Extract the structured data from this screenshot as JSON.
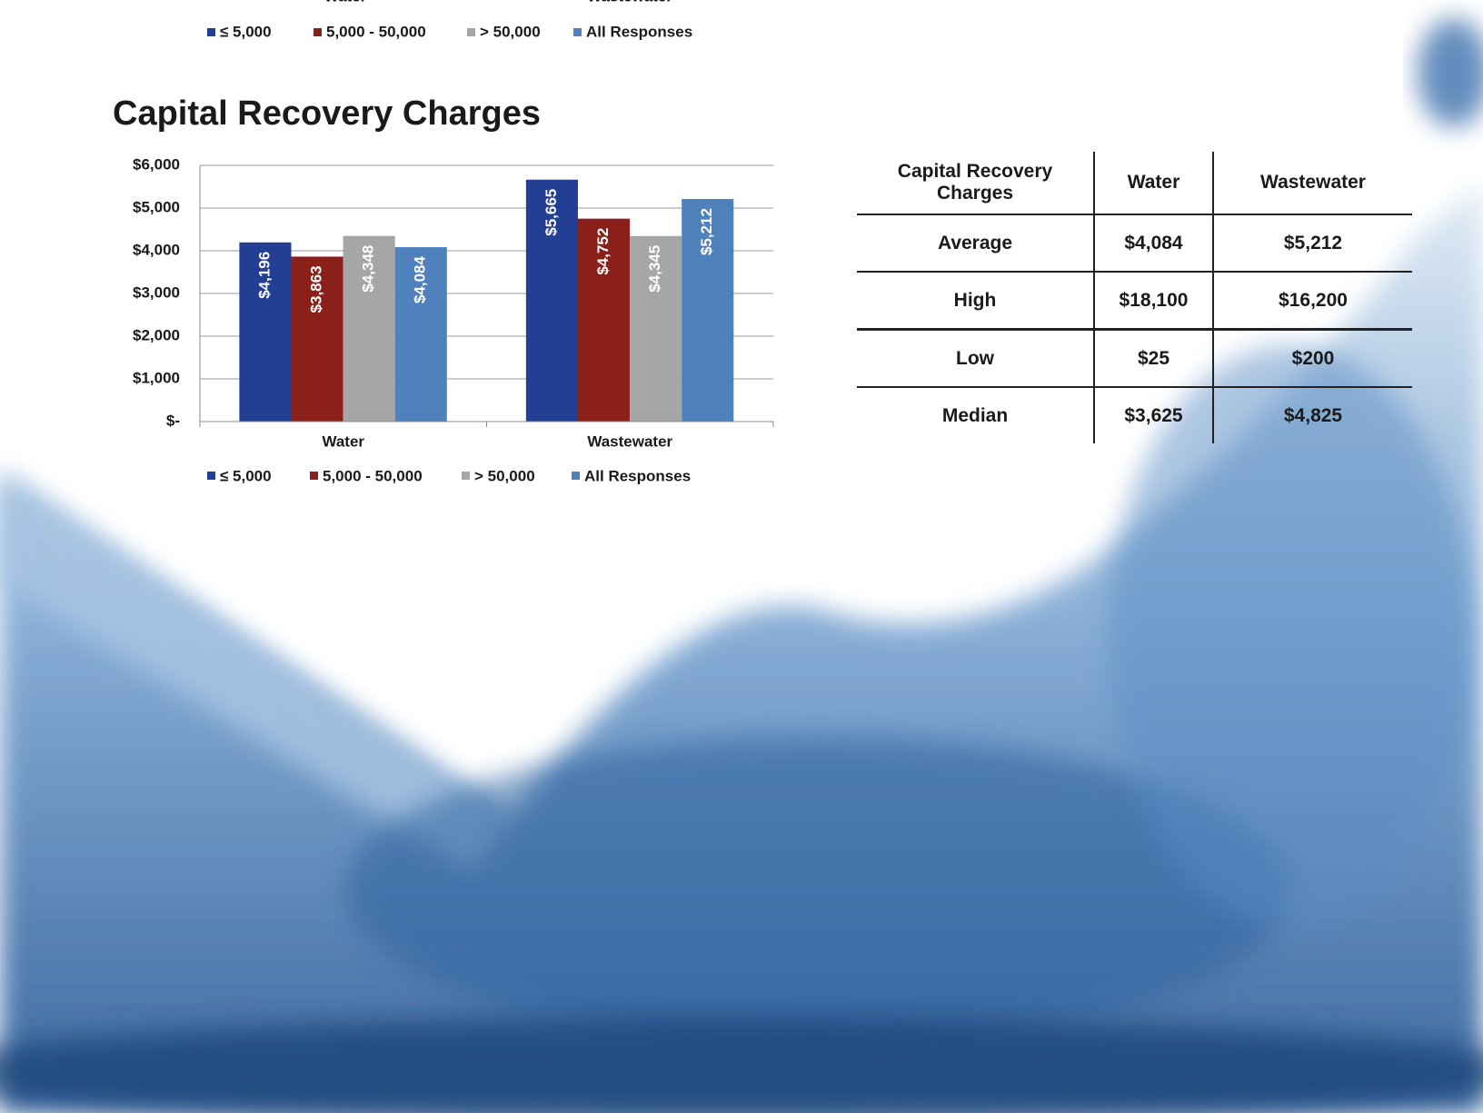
{
  "top_fragment": {
    "categories": [
      "Water",
      "Wastewater"
    ],
    "legend": [
      "≤ 5,000",
      "5,000 - 50,000",
      "> 50,000",
      "All Responses"
    ]
  },
  "chart_data": {
    "type": "bar",
    "title": "Capital Recovery Charges",
    "categories": [
      "Water",
      "Wastewater"
    ],
    "series": [
      {
        "name": "≤ 5,000",
        "color": "#233f94",
        "values": [
          4196,
          5665
        ],
        "value_labels": [
          "$4,196",
          "$5,665"
        ]
      },
      {
        "name": "5,000 - 50,000",
        "color": "#8b1f1a",
        "values": [
          3863,
          4752
        ],
        "value_labels": [
          "$3,863",
          "$4,752"
        ]
      },
      {
        "name": "> 50,000",
        "color": "#a6a6a6",
        "values": [
          4348,
          4345
        ],
        "value_labels": [
          "$4,348",
          "$4,345"
        ]
      },
      {
        "name": "All Responses",
        "color": "#4f81bd",
        "values": [
          4084,
          5212
        ],
        "value_labels": [
          "$4,084",
          "$5,212"
        ]
      }
    ],
    "ylim": [
      0,
      6000
    ],
    "yticks": [
      {
        "value": 0,
        "label": "$-"
      },
      {
        "value": 1000,
        "label": "$1,000"
      },
      {
        "value": 2000,
        "label": "$2,000"
      },
      {
        "value": 3000,
        "label": "$3,000"
      },
      {
        "value": 4000,
        "label": "$4,000"
      },
      {
        "value": 5000,
        "label": "$5,000"
      },
      {
        "value": 6000,
        "label": "$6,000"
      }
    ],
    "grid": true,
    "legend": "bottom"
  },
  "table": {
    "header": [
      "Capital Recovery Charges",
      "Water",
      "Wastewater"
    ],
    "rows": [
      [
        "Average",
        "$4,084",
        "$5,212"
      ],
      [
        "High",
        "$18,100",
        "$16,200"
      ],
      [
        "Low",
        "$25",
        "$200"
      ],
      [
        "Median",
        "$3,625",
        "$4,825"
      ]
    ]
  }
}
